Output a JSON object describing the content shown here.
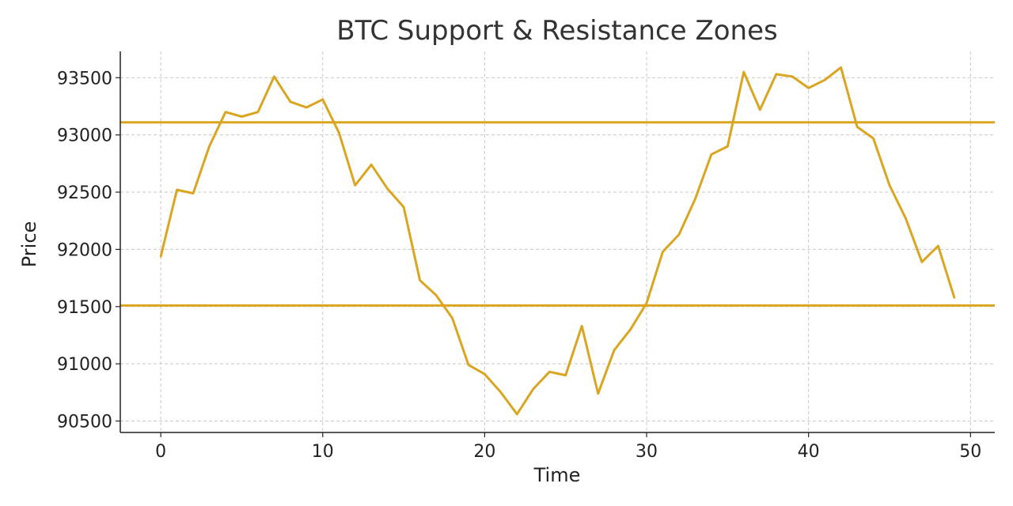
{
  "chart_data": {
    "type": "line",
    "title": "BTC Support & Resistance Zones",
    "xlabel": "Time",
    "ylabel": "Price",
    "xlim": [
      -2.5,
      51.5
    ],
    "ylim": [
      90400,
      93730
    ],
    "xticks": [
      0,
      10,
      20,
      30,
      40,
      50
    ],
    "yticks": [
      90500,
      91000,
      91500,
      92000,
      92500,
      93000,
      93500
    ],
    "grid": true,
    "colors": {
      "series": "#DAA520",
      "levels": "#DAA520"
    },
    "series": [
      {
        "x": [
          0,
          1,
          2,
          3,
          4,
          5,
          6,
          7,
          8,
          9,
          10,
          11,
          12,
          13,
          14,
          15,
          16,
          17,
          18,
          19,
          20,
          21,
          22,
          23,
          24,
          25,
          26,
          27,
          28,
          29,
          30,
          31,
          32,
          33,
          34,
          35,
          36,
          37,
          38,
          39,
          40,
          41,
          42,
          43,
          44,
          45,
          46,
          47,
          48,
          49
        ],
        "values": [
          91940,
          92520,
          92490,
          92900,
          93200,
          93160,
          93200,
          93510,
          93290,
          93240,
          93310,
          93020,
          92560,
          92740,
          92530,
          92370,
          91730,
          91600,
          91400,
          90990,
          90910,
          90750,
          90560,
          90780,
          90930,
          90900,
          91330,
          90740,
          91120,
          91300,
          91530,
          91980,
          92130,
          92440,
          92830,
          92900,
          93550,
          93220,
          93530,
          93510,
          93410,
          93480,
          93590,
          93070,
          92970,
          92560,
          92270,
          91890,
          92030,
          91580
        ]
      }
    ],
    "horizontal_lines": [
      {
        "value": 93110
      },
      {
        "value": 91510
      }
    ]
  }
}
